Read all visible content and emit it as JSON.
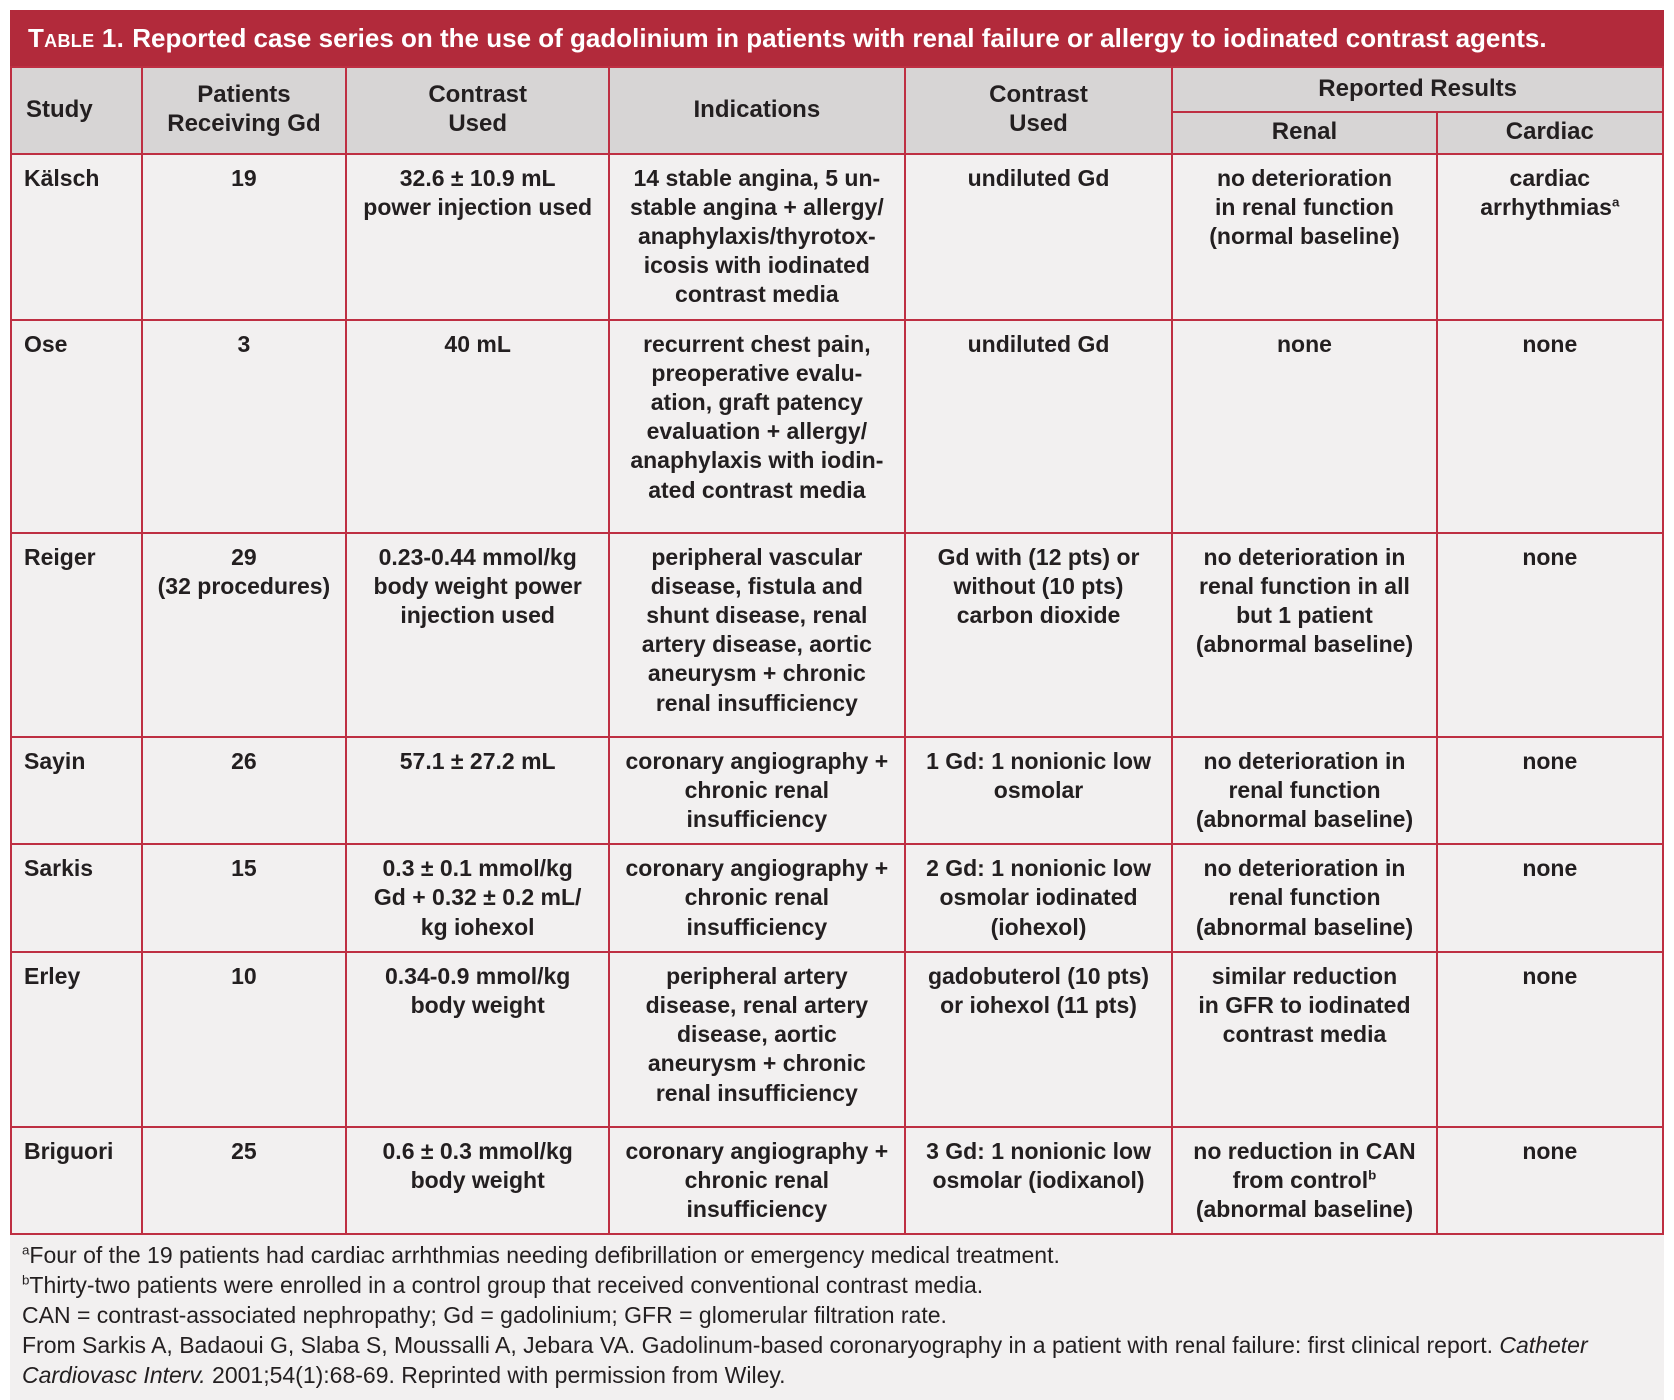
{
  "colors": {
    "title_bar": "#b22a3b",
    "grid_border": "#be2f42",
    "header_bg": "#d7d5d5",
    "cell_bg": "#f2f0f0",
    "text": "#231f20",
    "title_text": "#ffffff"
  },
  "table": {
    "title_prefix": "Table 1.",
    "title": "Reported case series on the use of gadolinium in patients with renal failure or allergy to iodinated contrast agents.",
    "headers": {
      "study": "Study",
      "patients": "Patients\nReceiving Gd",
      "contrast": "Contrast\nUsed",
      "indications": "Indications",
      "contrast2": "Contrast\nUsed",
      "reported_results": "Reported Results",
      "renal": "Renal",
      "cardiac": "Cardiac"
    },
    "rows": [
      {
        "study": "Kälsch",
        "patients": "19",
        "contrast": "32.6 ± 10.9 mL\npower injection used",
        "indications": "14 stable angina, 5 un-\nstable angina + allergy/\nanaphylaxis/thyrotox-\nicosis with iodinated\ncontrast media",
        "contrast2": "undiluted Gd",
        "renal": "no deterioration\nin renal function\n(normal baseline)",
        "cardiac": "cardiac\narrhythmias^a"
      },
      {
        "study": "Ose",
        "patients": "3",
        "contrast": "40 mL",
        "indications": "recurrent chest pain,\npreoperative evalu-\nation, graft patency\nevaluation + allergy/\nanaphylaxis with iodin-\nated contrast media",
        "contrast2": "undiluted Gd",
        "renal": "none",
        "cardiac": "none"
      },
      {
        "study": "Reiger",
        "patients": "29\n(32 procedures)",
        "contrast": "0.23-0.44 mmol/kg\nbody weight power\ninjection used",
        "indications": "peripheral vascular\ndisease, fistula and\nshunt disease, renal\nartery disease, aortic\naneurysm + chronic\nrenal insufficiency",
        "contrast2": "Gd with (12 pts) or\nwithout (10 pts)\ncarbon dioxide",
        "renal": "no deterioration in\nrenal function in all\nbut 1 patient\n(abnormal baseline)",
        "cardiac": "none"
      },
      {
        "study": "Sayin",
        "patients": "26",
        "contrast": "57.1 ± 27.2 mL",
        "indications": "coronary angiography +\nchronic renal\ninsufficiency",
        "contrast2": "1 Gd: 1 nonionic low\nosmolar",
        "renal": "no deterioration in\nrenal function\n(abnormal baseline)",
        "cardiac": "none"
      },
      {
        "study": "Sarkis",
        "patients": "15",
        "contrast": "0.3 ± 0.1 mmol/kg\nGd + 0.32 ± 0.2 mL/\nkg iohexol",
        "indications": "coronary angiography +\nchronic renal\ninsufficiency",
        "contrast2": "2 Gd: 1 nonionic low\nosmolar iodinated\n(iohexol)",
        "renal": "no deterioration in\nrenal function\n(abnormal baseline)",
        "cardiac": "none"
      },
      {
        "study": "Erley",
        "patients": "10",
        "contrast": "0.34-0.9 mmol/kg\nbody weight",
        "indications": "peripheral artery\ndisease, renal artery\ndisease, aortic\naneurysm + chronic\nrenal insufficiency",
        "contrast2": "gadobuterol (10 pts)\nor iohexol (11 pts)",
        "renal": "similar reduction\nin GFR to iodinated\ncontrast media",
        "cardiac": "none"
      },
      {
        "study": "Briguori",
        "patients": "25",
        "contrast": "0.6 ± 0.3 mmol/kg\nbody weight",
        "indications": "coronary angiography +\nchronic renal\ninsufficiency",
        "contrast2": "3 Gd: 1 nonionic low\nosmolar (iodixanol)",
        "renal": "no reduction in CAN\nfrom control^b\n(abnormal baseline)",
        "cardiac": "none"
      }
    ],
    "footnotes": [
      "^aFour of the 19 patients had cardiac arrhthmias needing defibrillation or emergency medical treatment.",
      "^bThirty-two patients were enrolled in a control group that received conventional contrast media.",
      "CAN = contrast-associated nephropathy; Gd = gadolinium; GFR = glomerular filtration rate.",
      "From Sarkis A, Badaoui G, Slaba S, Moussalli A, Jebara VA. Gadolinum-based coronaryography in a patient with renal failure: first clinical report. *Catheter Cardiovasc Interv.* 2001;54(1):68-69. Reprinted with permission from Wiley."
    ]
  }
}
